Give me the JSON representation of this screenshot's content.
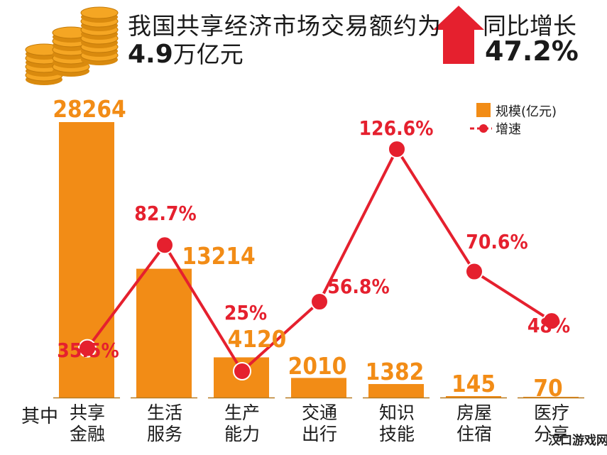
{
  "header": {
    "headline": "我国共享经济市场交易额约为",
    "total_value": "4.9",
    "total_unit": "万亿元",
    "yoy_label": "同比增长",
    "yoy_value": "47.2%"
  },
  "category_prefix": "其中",
  "watermark": "汉口游戏网",
  "colors": {
    "bar": "#F28C16",
    "line": "#E5202E",
    "text": "#1A1A1A",
    "coin": "#F5A623"
  },
  "chart_data": {
    "type": "bar",
    "categories": [
      [
        "共享",
        "金融"
      ],
      [
        "生活",
        "服务"
      ],
      [
        "生产",
        "能力"
      ],
      [
        "交通",
        "出行"
      ],
      [
        "知识",
        "技能"
      ],
      [
        "房屋",
        "住宿"
      ],
      [
        "医疗",
        "分享"
      ]
    ],
    "series": [
      {
        "name": "规模(亿元)",
        "type": "bar",
        "values": [
          28264,
          13214,
          4120,
          2010,
          1382,
          145,
          70
        ],
        "labels": [
          "28264",
          "13214",
          "4120",
          "2010",
          "1382",
          "145",
          "70"
        ]
      },
      {
        "name": "增速",
        "type": "line",
        "values": [
          35.5,
          82.7,
          25,
          56.8,
          126.6,
          70.6,
          48
        ],
        "labels": [
          "35.5%",
          "82.7%",
          "25%",
          "56.8%",
          "126.6%",
          "70.6%",
          "48%"
        ]
      }
    ],
    "legend": {
      "position": "top-right",
      "items": [
        "规模(亿元)",
        "增速"
      ]
    },
    "grid": false
  }
}
